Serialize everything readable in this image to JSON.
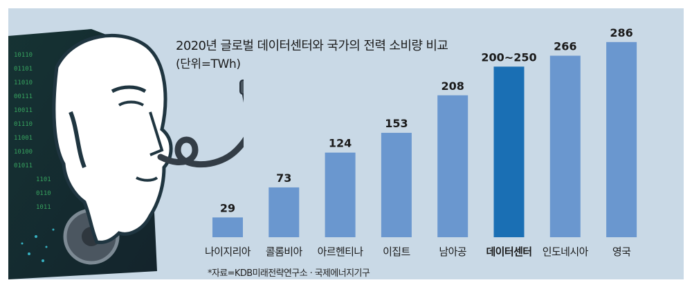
{
  "chart_data": {
    "type": "bar",
    "title": "2020년 글로벌 데이터센터와 국가의 전력 소비량 비교",
    "unit_label": "(단위=TWh)",
    "categories": [
      "나이지리아",
      "콜롬비아",
      "아르헨티나",
      "이집트",
      "남아공",
      "데이터센터",
      "인도네시아",
      "영국"
    ],
    "values": [
      29,
      73,
      124,
      153,
      208,
      250,
      266,
      286
    ],
    "value_labels": [
      "29",
      "73",
      "124",
      "153",
      "208",
      "200~250",
      "266",
      "286"
    ],
    "highlight_index": 5,
    "ylim": [
      0,
      300
    ],
    "grid": false,
    "colors": {
      "bar": "#6a97cf",
      "highlight": "#1a6fb4",
      "panel": "#c9d9e6"
    },
    "source": "*자료=KDB미래전략연구소 · 국제에너지기구"
  },
  "illustration": {
    "icon": "ai-head-with-power-plug-icon"
  }
}
